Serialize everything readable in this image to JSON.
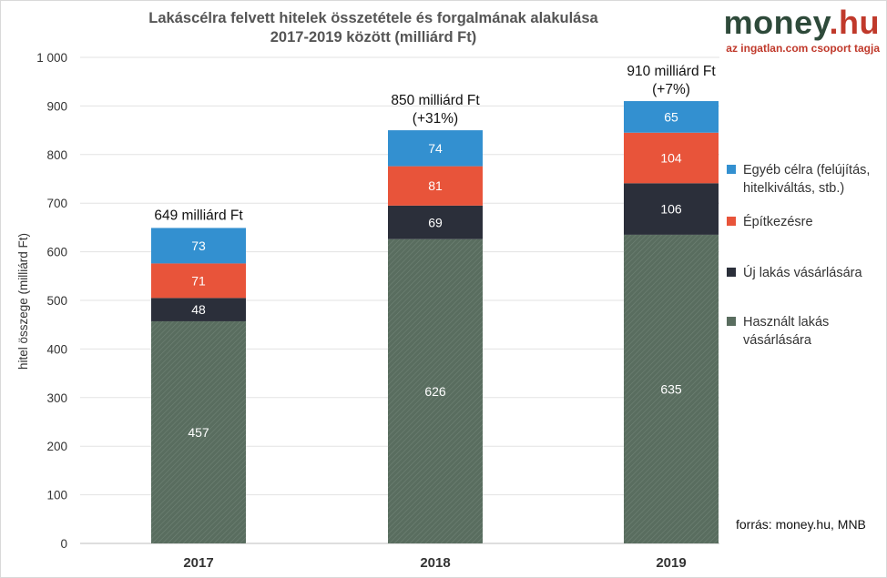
{
  "title": {
    "line1": "Lakáscélra felvett hitelek összetétele és forgalmának alakulása",
    "line2": "2017-2019 között (milliárd Ft)"
  },
  "logo": {
    "part1": "money",
    "part2": ".hu",
    "tagline": "az ingatlan.com csoport tagja",
    "color1": "#2e4a3a",
    "color2": "#c0392b"
  },
  "source": "forrás: money.hu, MNB",
  "chart_data": {
    "type": "bar",
    "stacked": true,
    "categories": [
      "2017",
      "2018",
      "2019"
    ],
    "series": [
      {
        "name": "Használt lakás vásárlására",
        "color": "#596d5f",
        "values": [
          457,
          626,
          635
        ]
      },
      {
        "name": "Új lakás vásárlására",
        "color": "#2b2f3a",
        "values": [
          48,
          69,
          106
        ]
      },
      {
        "name": "Építkezésre",
        "color": "#e8543a",
        "values": [
          71,
          81,
          104
        ]
      },
      {
        "name": "Egyéb célra (felújítás, hitelkiváltás, stb.)",
        "color": "#3390d0",
        "values": [
          73,
          74,
          65
        ]
      }
    ],
    "totals": [
      {
        "line1": "649 milliárd Ft",
        "line2": ""
      },
      {
        "line1": "850 milliárd Ft",
        "line2": "(+31%)"
      },
      {
        "line1": "910 milliárd Ft",
        "line2": "(+7%)"
      }
    ],
    "ylabel": "hitel összege (milliárd Ft)",
    "xlabel": "",
    "ylim": [
      0,
      1000
    ],
    "yticks": [
      0,
      100,
      200,
      300,
      400,
      500,
      600,
      700,
      800,
      900,
      1000
    ],
    "ytick_labels": [
      "0",
      "100",
      "200",
      "300",
      "400",
      "500",
      "600",
      "700",
      "800",
      "900",
      "1 000"
    ],
    "grid": true,
    "legend_position": "right"
  }
}
